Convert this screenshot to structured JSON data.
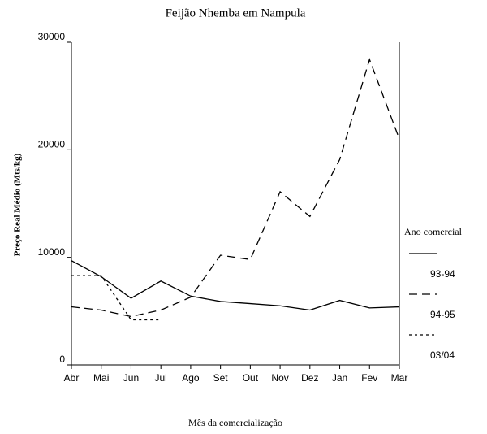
{
  "chart_data": {
    "type": "line",
    "title": "Feijão Nhemba em Nampula",
    "x_label": "Mês da comercialização",
    "y_label": "Preço Real Médio (Mts/kg)",
    "legend_title": "Ano comercial",
    "categories": [
      "Abr",
      "Mai",
      "Jun",
      "Jul",
      "Ago",
      "Set",
      "Out",
      "Nov",
      "Dez",
      "Jan",
      "Fev",
      "Mar"
    ],
    "series": [
      {
        "name": "93-94",
        "color": "#000000",
        "dash": "solid",
        "values": [
          9700,
          8200,
          6200,
          7800,
          6400,
          5900,
          5700,
          5500,
          5100,
          6000,
          5300,
          5400
        ]
      },
      {
        "name": "94-95",
        "color": "#000000",
        "dash": "dashed",
        "values": [
          5400,
          5100,
          4500,
          5100,
          6300,
          10200,
          9800,
          16100,
          13800,
          19100,
          28400,
          21000
        ]
      },
      {
        "name": "03/04",
        "color": "#000000",
        "dash": "dotted",
        "values": [
          8300,
          8300,
          4200,
          4200,
          null,
          null,
          null,
          null,
          null,
          null,
          null,
          null
        ]
      }
    ],
    "ylim": [
      0,
      30000
    ],
    "yticks": [
      0,
      10000,
      20000,
      30000
    ],
    "legend": "right"
  }
}
